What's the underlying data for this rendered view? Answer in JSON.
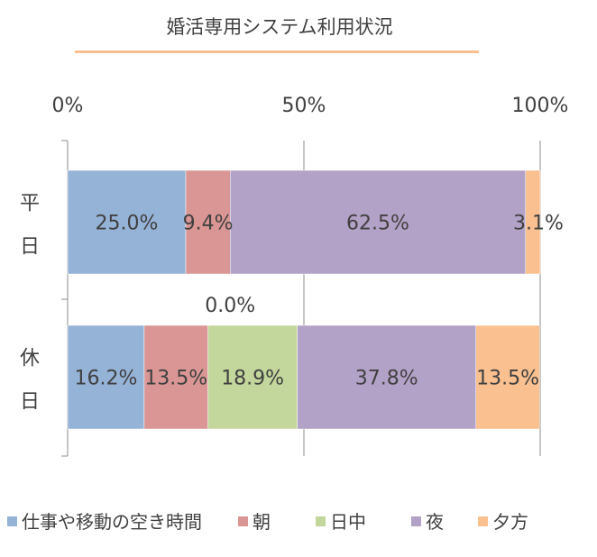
{
  "chart_data": {
    "type": "bar",
    "orientation": "horizontal",
    "stacked": "percent",
    "title": "婚活専用システム利用状況",
    "categories": [
      "平日",
      "休日"
    ],
    "category_display": [
      [
        "平",
        "日"
      ],
      [
        "休",
        "日"
      ]
    ],
    "xlim": [
      0,
      100
    ],
    "ticks": [
      0,
      50,
      100
    ],
    "tick_labels": [
      "0%",
      "50%",
      "100%"
    ],
    "grid": true,
    "legend_position": "bottom",
    "series": [
      {
        "name": "仕事や移動の空き時間",
        "color": "#95b3d7",
        "values": [
          25.0,
          16.2
        ],
        "labels": [
          "25.0%",
          "16.2%"
        ]
      },
      {
        "name": "朝",
        "color": "#d99694",
        "values": [
          9.4,
          13.5
        ],
        "labels": [
          "9.4%",
          "13.5%"
        ]
      },
      {
        "name": "日中",
        "color": "#c3d69b",
        "values": [
          0.0,
          18.9
        ],
        "labels": [
          "0.0%",
          "18.9%"
        ]
      },
      {
        "name": "夜",
        "color": "#b3a2c7",
        "values": [
          62.5,
          37.8
        ],
        "labels": [
          "62.5%",
          "37.8%"
        ]
      },
      {
        "name": "夕方",
        "color": "#fac090",
        "values": [
          3.1,
          13.5
        ],
        "labels": [
          "3.1%",
          "13.5%"
        ]
      }
    ]
  }
}
